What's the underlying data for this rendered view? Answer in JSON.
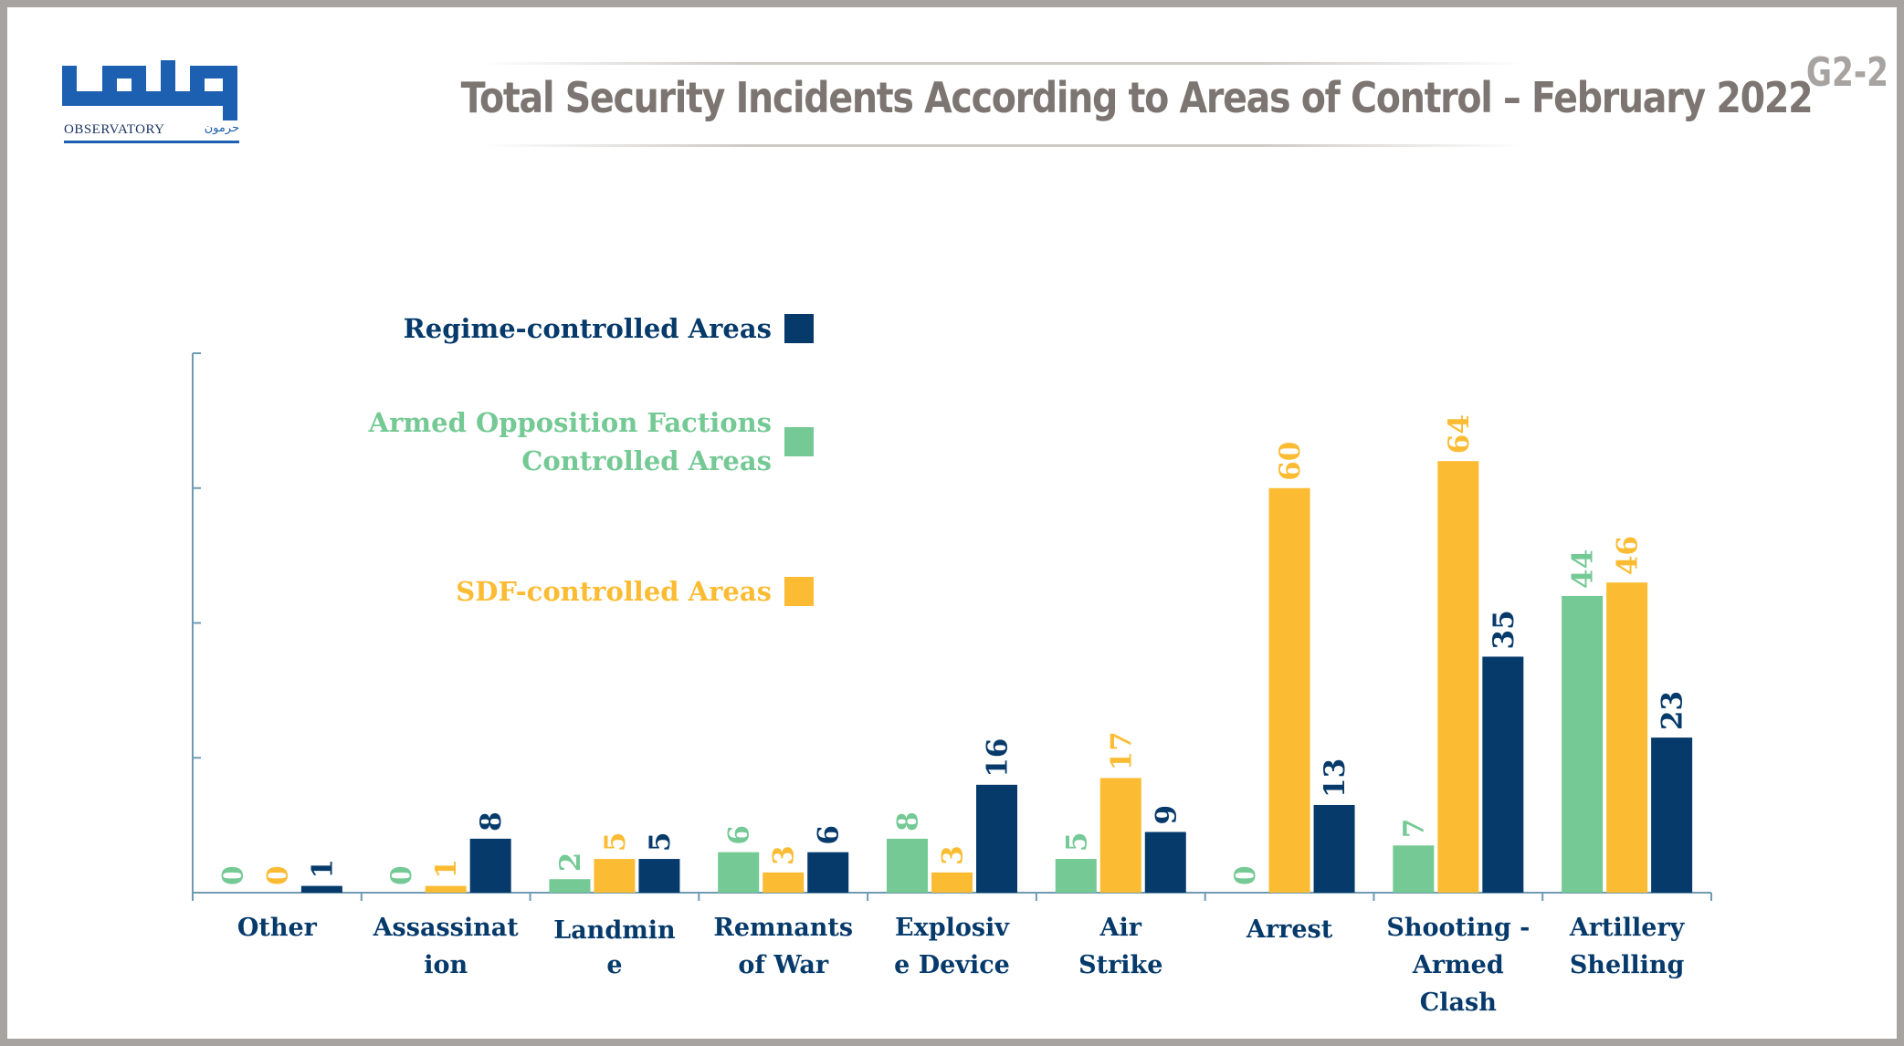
{
  "header": {
    "logo_name_en": "OBSERVATORY",
    "logo_name_ar": "حرمون",
    "title": "Total Security Incidents According to Areas of Control – February 2022",
    "code": "G2-2"
  },
  "colors": {
    "regime": "#063a6b",
    "opposition": "#74c994",
    "sdf": "#fbbc33",
    "logo_blue": "#1d5fb0",
    "title_gray": "#7c7571",
    "frame_gray": "#a7a3a0"
  },
  "chart_data": {
    "type": "bar",
    "title": "Total Security Incidents According to Areas of Control – February 2022",
    "categories": [
      [
        "Other"
      ],
      [
        "Assassinat",
        "ion"
      ],
      [
        "Landmin",
        "e"
      ],
      [
        "Remnants",
        "of War"
      ],
      [
        "Explosiv",
        "e Device"
      ],
      [
        "Air",
        "Strike"
      ],
      [
        "Arrest"
      ],
      [
        "Shooting -",
        "Armed",
        "Clash"
      ],
      [
        "Artillery",
        "Shelling"
      ]
    ],
    "series": [
      {
        "name": "Armed Opposition Factions Controlled Areas",
        "legend_lines": [
          "Armed Opposition Factions",
          "Controlled Areas"
        ],
        "color": "#74c994",
        "values": [
          0,
          0,
          2,
          6,
          8,
          5,
          0,
          7,
          44
        ]
      },
      {
        "name": "SDF-controlled Areas",
        "legend_lines": [
          "SDF-controlled Areas"
        ],
        "color": "#fbbc33",
        "values": [
          0,
          1,
          5,
          3,
          3,
          17,
          60,
          64,
          46
        ]
      },
      {
        "name": "Regime-controlled Areas",
        "legend_lines": [
          "Regime-controlled Areas"
        ],
        "color": "#063a6b",
        "values": [
          1,
          8,
          5,
          6,
          16,
          9,
          13,
          35,
          23
        ]
      }
    ],
    "legend_order": [
      2,
      0,
      1
    ],
    "ylim": [
      0,
      80
    ],
    "ytick_step": 20,
    "xlabel": "",
    "ylabel": "",
    "legend_position": "top-left",
    "grid": false
  }
}
